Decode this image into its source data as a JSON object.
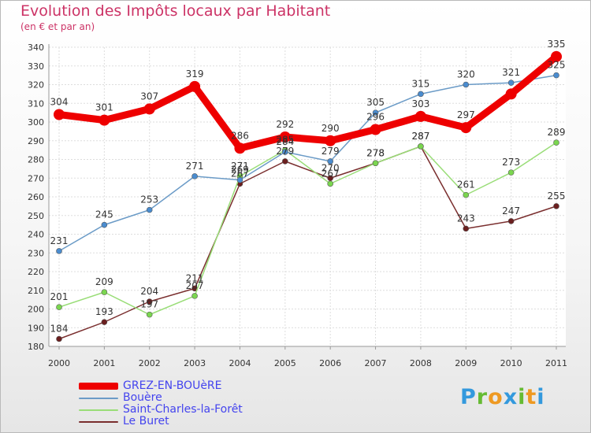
{
  "chart_data": {
    "type": "line",
    "title": "Evolution des Impôts locaux par Habitant",
    "subtitle": "(en € et par an)",
    "xlabel": "",
    "ylabel": "",
    "ylim": [
      180,
      340
    ],
    "yticks": [
      180,
      190,
      200,
      210,
      220,
      230,
      240,
      250,
      260,
      270,
      280,
      290,
      300,
      310,
      320,
      330,
      340
    ],
    "categories": [
      "2000",
      "2001",
      "2002",
      "2003",
      "2004",
      "2005",
      "2006",
      "2007",
      "2008",
      "2009",
      "2010",
      "2011"
    ],
    "grid": true,
    "legend_position": "bottom-left",
    "series": [
      {
        "name": "GREZ-EN-BOUèRE",
        "color": "#ee0000",
        "marker_color": "#ee0000",
        "values": [
          304,
          301,
          307,
          319,
          286,
          292,
          290,
          296,
          303,
          297,
          315,
          335
        ],
        "labels": [
          "304",
          "301",
          "307",
          "319",
          "286",
          "292",
          "290",
          "296",
          "303",
          "297",
          "",
          "335"
        ]
      },
      {
        "name": "Bouère",
        "color": "#6b9bc7",
        "marker_color": "#4a8ccf",
        "values": [
          231,
          245,
          253,
          271,
          269,
          284,
          279,
          305,
          315,
          320,
          321,
          325
        ],
        "labels": [
          "231",
          "245",
          "253",
          "271",
          "269",
          "284",
          "279",
          "305",
          "315",
          "320",
          "321",
          "325"
        ]
      },
      {
        "name": "Saint-Charles-la-Forêt",
        "color": "#99dd77",
        "marker_color": "#7ad64f",
        "values": [
          201,
          209,
          197,
          207,
          271,
          285,
          267,
          278,
          287,
          261,
          273,
          289
        ],
        "labels": [
          "201",
          "209",
          "197",
          "207",
          "271",
          "285",
          "267",
          "278",
          "287",
          "261",
          "273",
          "289"
        ]
      },
      {
        "name": "Le Buret",
        "color": "#7a2e2e",
        "marker_color": "#6b1f1f",
        "values": [
          184,
          193,
          204,
          211,
          267,
          279,
          270,
          278,
          287,
          243,
          247,
          255
        ],
        "labels": [
          "184",
          "193",
          "204",
          "211",
          "267",
          "279",
          "270",
          "278",
          "287",
          "243",
          "247",
          "255"
        ]
      }
    ]
  },
  "legend": {
    "items": [
      {
        "label": "GREZ-EN-BOUèRE",
        "color": "#ee0000"
      },
      {
        "label": "Bouère",
        "color": "#6b9bc7"
      },
      {
        "label": "Saint-Charles-la-Forêt",
        "color": "#99dd77"
      },
      {
        "label": "Le Buret",
        "color": "#7a2e2e"
      }
    ]
  },
  "logo": {
    "letters": [
      "P",
      "r",
      "o",
      "x",
      "i",
      "t",
      "i"
    ],
    "colors": [
      "#3399dd",
      "#66bb33",
      "#ee9922",
      "#3399dd",
      "#66bb33",
      "#ee9922",
      "#3399dd"
    ]
  }
}
